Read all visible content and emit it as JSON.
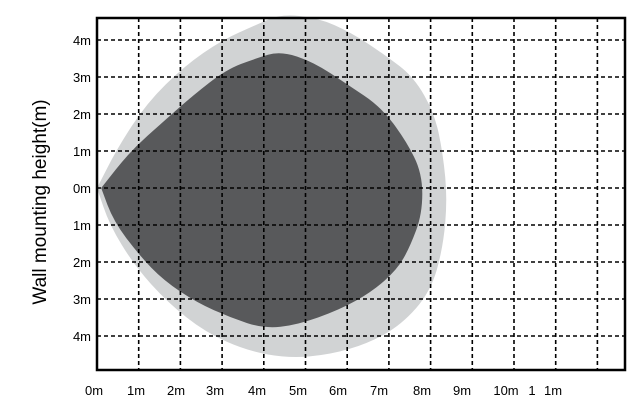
{
  "chart_data": {
    "type": "area",
    "title": "",
    "xlabel": "",
    "ylabel": "Wall mounting height(m)",
    "x_tick_labels": [
      "0m",
      "1m",
      "2m",
      "3m",
      "4m",
      "5m",
      "6m",
      "7m",
      "8m",
      "9m",
      "10m",
      "1",
      "1m"
    ],
    "y_tick_labels": [
      "4m",
      "3m",
      "2m",
      "1m",
      "0m",
      "1m",
      "2m",
      "3m",
      "4m"
    ],
    "xlim": [
      0,
      14
    ],
    "ylim": [
      -5,
      5
    ],
    "grid": true,
    "series": [
      {
        "color": "#d1d3d4",
        "points": [
          [
            0,
            0
          ],
          [
            0.5,
            1.1
          ],
          [
            1.2,
            2.3
          ],
          [
            2.1,
            3.3
          ],
          [
            3.0,
            4.0
          ],
          [
            3.8,
            4.4
          ],
          [
            4.4,
            4.7
          ],
          [
            5.3,
            4.6
          ],
          [
            6.1,
            4.2
          ],
          [
            6.9,
            3.6
          ],
          [
            7.6,
            3.0
          ],
          [
            8.1,
            2.0
          ],
          [
            8.3,
            0.9
          ],
          [
            8.4,
            -0.3
          ],
          [
            8.3,
            -1.6
          ],
          [
            8.0,
            -2.8
          ],
          [
            7.3,
            -3.7
          ],
          [
            6.5,
            -4.2
          ],
          [
            5.6,
            -4.5
          ],
          [
            4.6,
            -4.6
          ],
          [
            3.6,
            -4.4
          ],
          [
            2.6,
            -3.9
          ],
          [
            1.7,
            -3.1
          ],
          [
            0.9,
            -2.1
          ],
          [
            0.3,
            -1.0
          ],
          [
            0,
            0
          ]
        ]
      },
      {
        "color": "#58595b",
        "points": [
          [
            0.1,
            0
          ],
          [
            0.8,
            1.0
          ],
          [
            1.6,
            1.8
          ],
          [
            2.3,
            2.5
          ],
          [
            3.1,
            3.2
          ],
          [
            3.8,
            3.5
          ],
          [
            4.4,
            3.7
          ],
          [
            5.2,
            3.4
          ],
          [
            6.0,
            2.8
          ],
          [
            6.8,
            2.2
          ],
          [
            7.4,
            1.3
          ],
          [
            7.8,
            0.4
          ],
          [
            7.8,
            -0.7
          ],
          [
            7.5,
            -1.6
          ],
          [
            7.2,
            -2.2
          ],
          [
            6.6,
            -2.8
          ],
          [
            5.8,
            -3.3
          ],
          [
            4.8,
            -3.7
          ],
          [
            4.0,
            -3.8
          ],
          [
            3.2,
            -3.5
          ],
          [
            2.4,
            -3.1
          ],
          [
            1.6,
            -2.5
          ],
          [
            1.0,
            -1.8
          ],
          [
            0.4,
            -0.9
          ],
          [
            0.1,
            0
          ]
        ]
      }
    ]
  }
}
